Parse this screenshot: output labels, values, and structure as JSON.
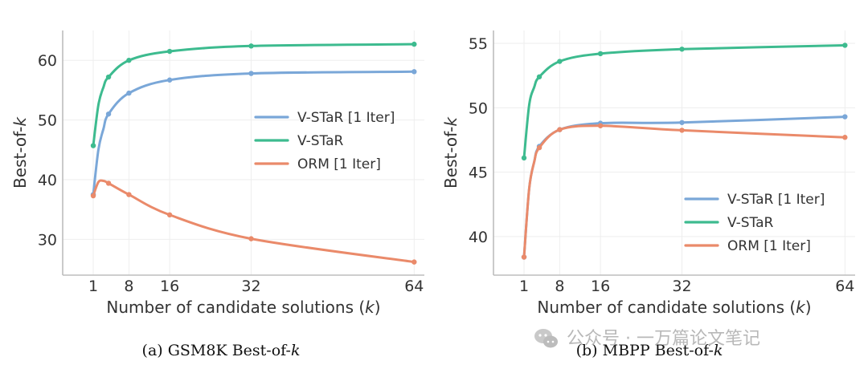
{
  "colors": {
    "v_star_1iter": "#7aa7d8",
    "v_star": "#3dbb8f",
    "orm_1iter": "#ea8a6a"
  },
  "chart_data": [
    {
      "type": "line",
      "caption": "(a) GSM8K Best-of-k",
      "xlabel": "Number of candidate solutions (k)",
      "ylabel": "Best-of-k",
      "xlim": [
        -5,
        66
      ],
      "ylim": [
        24,
        65
      ],
      "xticks": [
        1,
        8,
        16,
        32,
        64
      ],
      "yticks": [
        30,
        40,
        50,
        60
      ],
      "legend": "center-right",
      "series": [
        {
          "name": "V-STaR [1 Iter]",
          "color_key": "v_star_1iter",
          "x": [
            1,
            2,
            3,
            4,
            8,
            16,
            32,
            64
          ],
          "y": [
            37.5,
            45.0,
            48.5,
            51.0,
            54.5,
            56.7,
            57.8,
            58.1
          ],
          "markers_x": [
            1,
            4,
            8,
            16,
            32,
            64
          ]
        },
        {
          "name": "V-STaR",
          "color_key": "v_star",
          "x": [
            1,
            2,
            3,
            4,
            8,
            16,
            32,
            64
          ],
          "y": [
            45.7,
            52.5,
            55.5,
            57.2,
            60.0,
            61.5,
            62.4,
            62.7
          ],
          "markers_x": [
            1,
            4,
            8,
            16,
            32,
            64
          ]
        },
        {
          "name": "ORM [1 Iter]",
          "color_key": "orm_1iter",
          "x": [
            1,
            2,
            3,
            4,
            8,
            16,
            32,
            64
          ],
          "y": [
            37.3,
            39.6,
            39.8,
            39.4,
            37.5,
            34.1,
            30.1,
            26.2
          ],
          "markers_x": [
            1,
            4,
            8,
            16,
            32,
            64
          ]
        }
      ]
    },
    {
      "type": "line",
      "caption": "(b) MBPP Best-of-k",
      "xlabel": "Number of candidate solutions (k)",
      "ylabel": "Best-of-k",
      "xlim": [
        -5,
        66
      ],
      "ylim": [
        37,
        56
      ],
      "xticks": [
        1,
        8,
        16,
        32,
        64
      ],
      "yticks": [
        40,
        45,
        50,
        55
      ],
      "legend": "lower-right",
      "series": [
        {
          "name": "V-STaR [1 Iter]",
          "color_key": "v_star_1iter",
          "x": [
            1,
            2,
            3,
            4,
            8,
            16,
            32,
            64
          ],
          "y": [
            38.4,
            43.7,
            45.8,
            47.0,
            48.3,
            48.8,
            48.85,
            49.3
          ],
          "markers_x": [
            1,
            4,
            8,
            16,
            32,
            64
          ]
        },
        {
          "name": "V-STaR",
          "color_key": "v_star",
          "x": [
            1,
            2,
            3,
            4,
            8,
            16,
            32,
            64
          ],
          "y": [
            46.1,
            50.2,
            51.6,
            52.4,
            53.6,
            54.2,
            54.55,
            54.85
          ],
          "markers_x": [
            1,
            4,
            8,
            16,
            32,
            64
          ]
        },
        {
          "name": "ORM [1 Iter]",
          "color_key": "orm_1iter",
          "x": [
            1,
            2,
            3,
            4,
            8,
            16,
            32,
            64
          ],
          "y": [
            38.4,
            43.7,
            45.8,
            46.9,
            48.3,
            48.6,
            48.25,
            47.7
          ],
          "markers_x": [
            1,
            4,
            8,
            16,
            32,
            64
          ]
        }
      ]
    }
  ],
  "watermark": {
    "text": "公众号 · 一万篇论文笔记",
    "icon": "wechat-icon"
  }
}
